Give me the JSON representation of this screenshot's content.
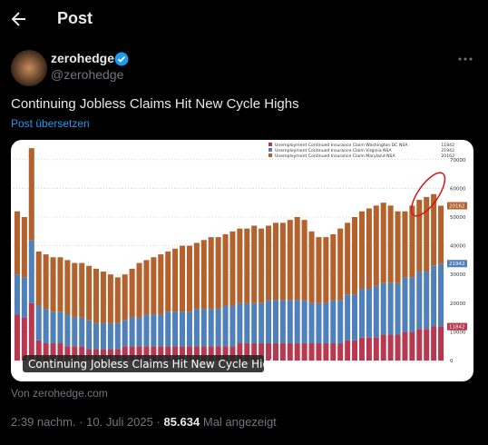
{
  "header": {
    "title": "Post"
  },
  "author": {
    "name": "zerohedge",
    "handle": "@zerohedge"
  },
  "tweet": {
    "text": "Continuing Jobless Claims Hit New Cycle Highs",
    "translate": "Post übersetzen"
  },
  "media": {
    "caption": "Continuing Jobless Claims Hit New Cycle Highs",
    "source": "Von zerohedge.com"
  },
  "footer": {
    "time": "2:39 nachm.",
    "separator": "·",
    "date": "10. Juli 2025",
    "views": "85.634",
    "views_label": "Mal angezeigt"
  },
  "chart_data": {
    "type": "bar",
    "stacked": true,
    "grid": true,
    "y_axis_side": "right",
    "legend": "top-right",
    "ylim": [
      0,
      75000
    ],
    "yticks": [
      0,
      10000,
      20000,
      30000,
      40000,
      50000,
      60000,
      70000
    ],
    "series": [
      {
        "name": "Unemployment Continued Insurance Claim Washington DC NSA",
        "color": "#b8394f",
        "values": [
          16000,
          15000,
          20000,
          7000,
          6000,
          6000,
          6000,
          5000,
          5000,
          5000,
          4000,
          4000,
          4000,
          4000,
          4000,
          5000,
          5000,
          5000,
          5000,
          5000,
          5000,
          5000,
          5000,
          5000,
          5000,
          5000,
          5000,
          5000,
          5000,
          5000,
          5000,
          6000,
          6000,
          6000,
          6000,
          6000,
          6000,
          6000,
          6000,
          6000,
          6000,
          6000,
          6000,
          6000,
          6000,
          6000,
          7000,
          7000,
          8000,
          8000,
          8000,
          9000,
          9000,
          9000,
          10000,
          10000,
          11000,
          11000,
          12000,
          11842
        ]
      },
      {
        "name": "Unemployment Continued Insurance Claim Virginia NSA",
        "color": "#4f80ba",
        "values": [
          14000,
          14000,
          22000,
          12000,
          12000,
          11000,
          11000,
          11000,
          10000,
          10000,
          10000,
          9000,
          9000,
          9000,
          9000,
          9000,
          10000,
          10000,
          11000,
          11000,
          11000,
          12000,
          12000,
          12000,
          12000,
          13000,
          13000,
          13000,
          13000,
          14000,
          14000,
          14000,
          14000,
          14000,
          14000,
          15000,
          15000,
          15000,
          15000,
          15000,
          15000,
          14000,
          14000,
          14000,
          15000,
          15000,
          16000,
          16000,
          17000,
          17000,
          18000,
          18000,
          18000,
          18000,
          19000,
          19000,
          20000,
          20000,
          21000,
          21942
        ]
      },
      {
        "name": "Unemployment Continued Insurance Claim Maryland NSA",
        "color": "#b3622d",
        "values": [
          22000,
          21000,
          32000,
          19000,
          19000,
          19000,
          19000,
          19000,
          19000,
          19000,
          19000,
          19000,
          18000,
          17000,
          16000,
          16000,
          17000,
          19000,
          19000,
          20000,
          21000,
          21000,
          22000,
          23000,
          23000,
          23000,
          24000,
          25000,
          25000,
          25000,
          26000,
          26000,
          26000,
          27000,
          26000,
          26000,
          27000,
          27000,
          28000,
          29000,
          28000,
          25000,
          23000,
          23000,
          23000,
          25000,
          25000,
          27000,
          27000,
          28000,
          28000,
          28000,
          27000,
          25000,
          23000,
          25000,
          25000,
          26000,
          25000,
          20162
        ]
      }
    ]
  }
}
